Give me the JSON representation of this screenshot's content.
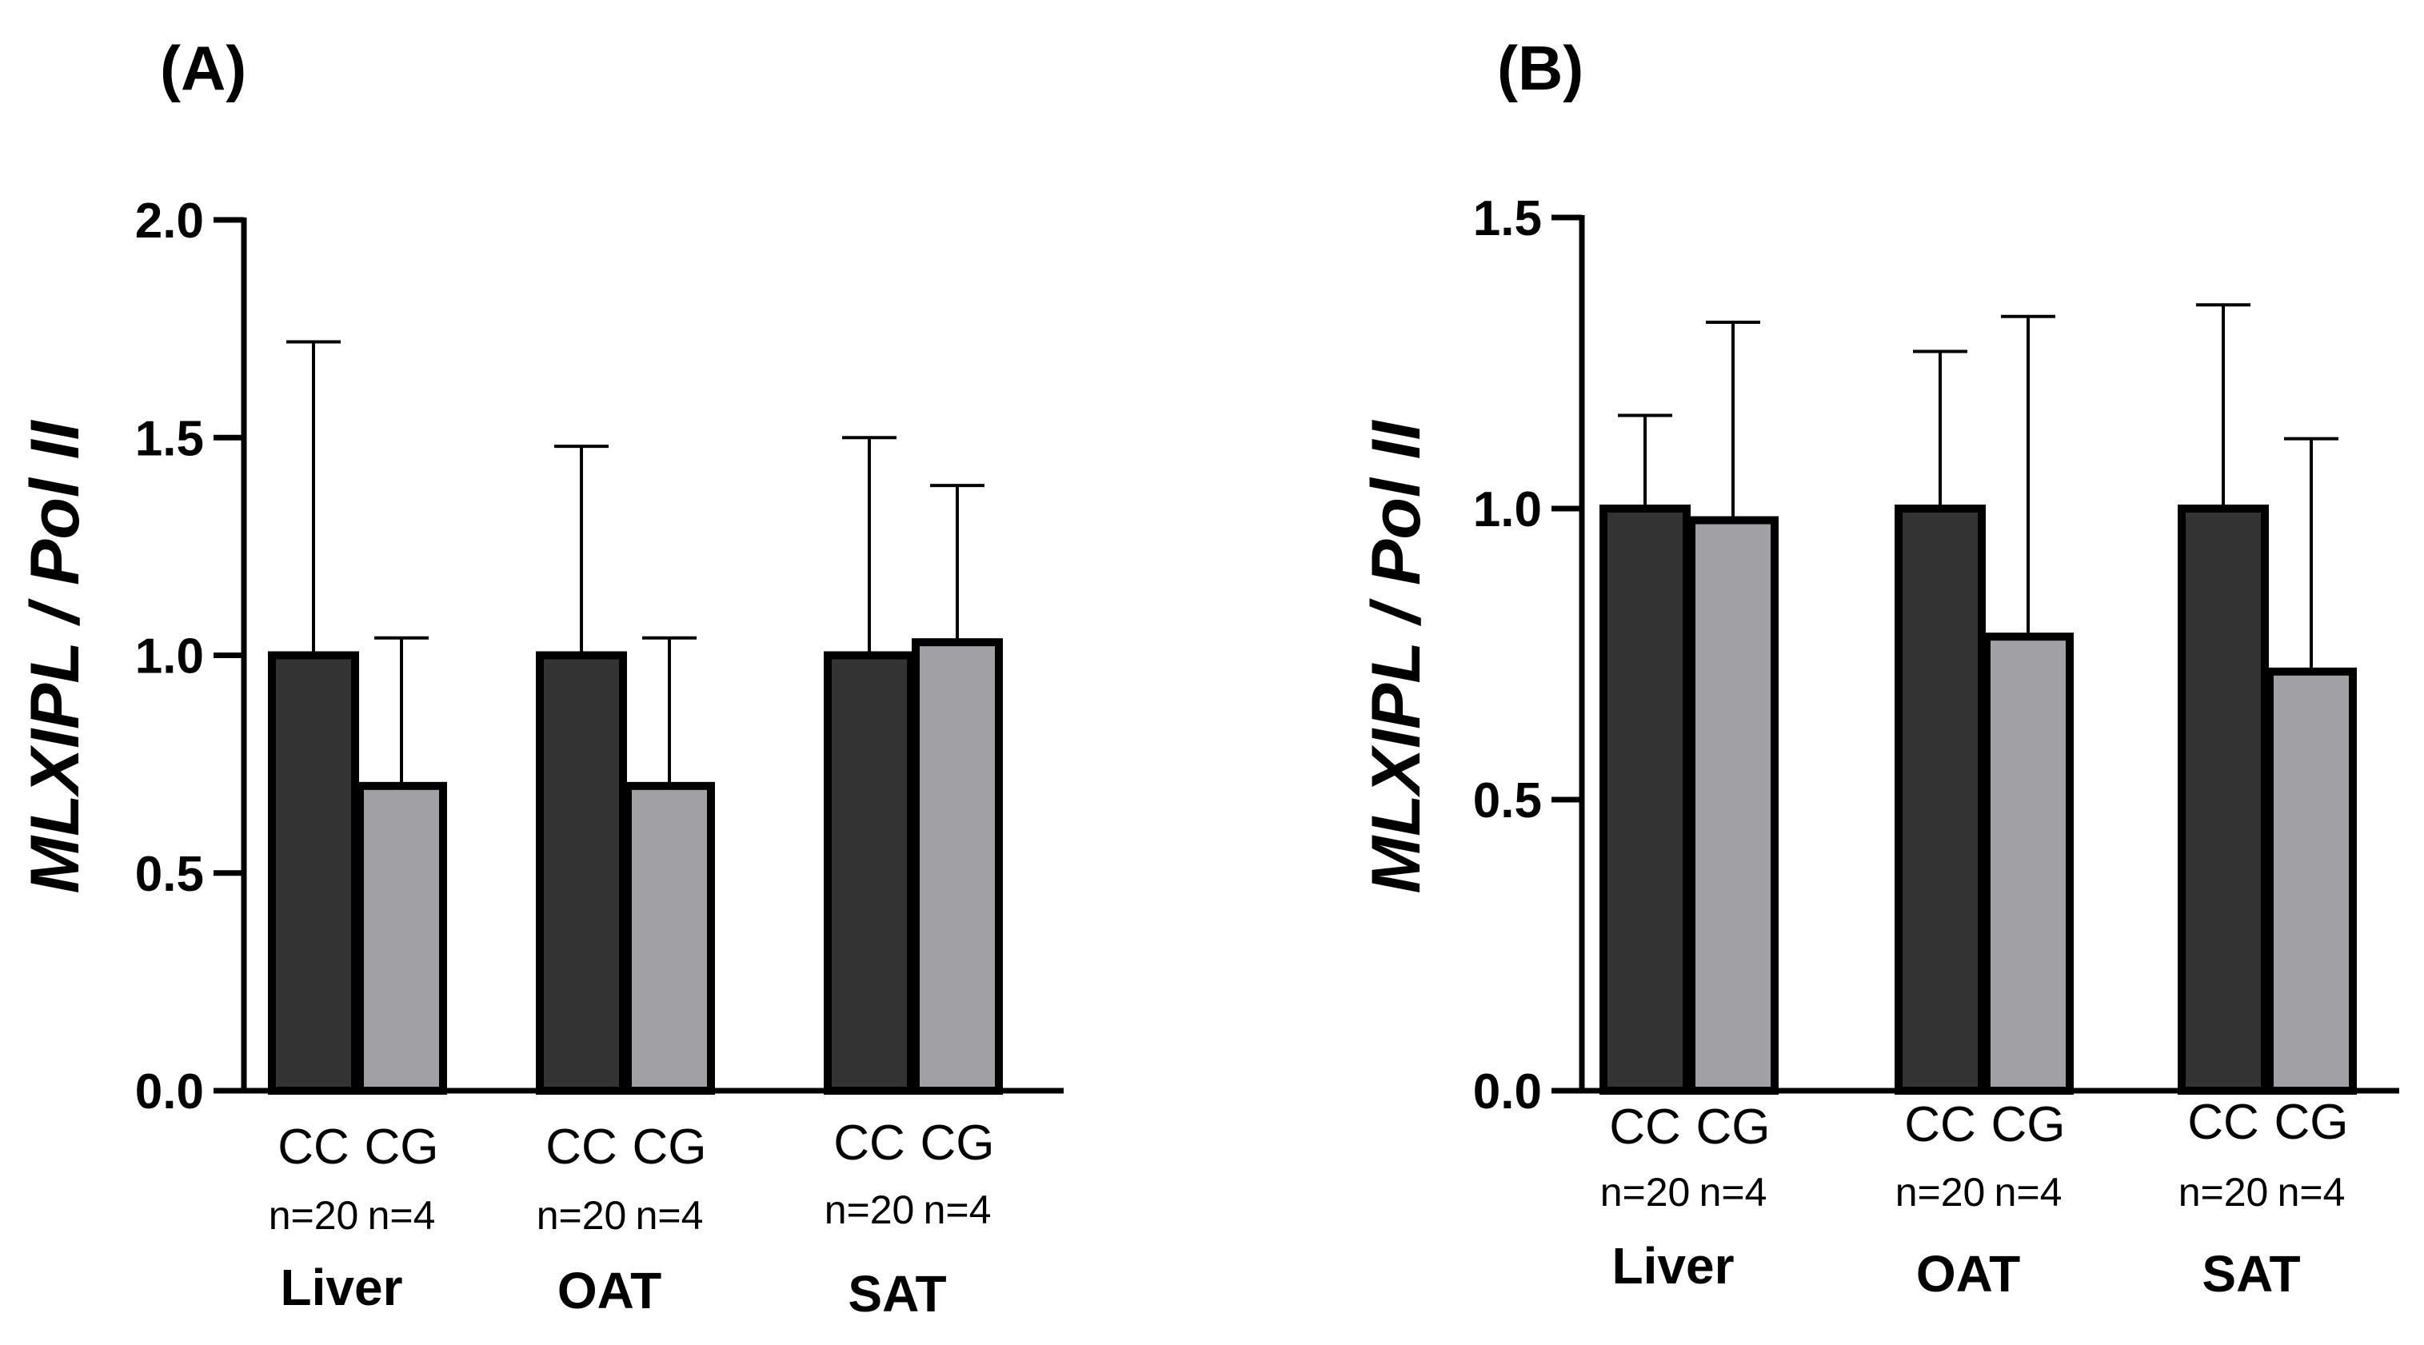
{
  "chart_data": [
    {
      "type": "bar",
      "panel_label": "(A)",
      "ylabel": "MLXIPL / Pol II",
      "ylim": [
        0,
        2.0
      ],
      "yticks": [
        "0.0",
        "0.5",
        "1.0",
        "1.5",
        "2.0"
      ],
      "groups": [
        {
          "tissue": "Liver",
          "bars": [
            {
              "label": "CC",
              "n": "n=20",
              "value": 1.0,
              "error": 0.72
            },
            {
              "label": "CG",
              "n": "n=4",
              "value": 0.7,
              "error": 0.34
            }
          ]
        },
        {
          "tissue": "OAT",
          "bars": [
            {
              "label": "CC",
              "n": "n=20",
              "value": 1.0,
              "error": 0.48
            },
            {
              "label": "CG",
              "n": "n=4",
              "value": 0.7,
              "error": 0.34
            }
          ]
        },
        {
          "tissue": "SAT",
          "bars": [
            {
              "label": "CC",
              "n": "n=20",
              "value": 1.0,
              "error": 0.5
            },
            {
              "label": "CG",
              "n": "n=4",
              "value": 1.03,
              "error": 0.36
            }
          ]
        }
      ]
    },
    {
      "type": "bar",
      "panel_label": "(B)",
      "ylabel": "MLXIPL / Pol II",
      "ylim": [
        0,
        1.5
      ],
      "yticks": [
        "0.0",
        "0.5",
        "1.0",
        "1.5"
      ],
      "groups": [
        {
          "tissue": "Liver",
          "bars": [
            {
              "label": "CC",
              "n": "n=20",
              "value": 1.0,
              "error": 0.16
            },
            {
              "label": "CG",
              "n": "n=4",
              "value": 0.98,
              "error": 0.34
            }
          ]
        },
        {
          "tissue": "OAT",
          "bars": [
            {
              "label": "CC",
              "n": "n=20",
              "value": 1.0,
              "error": 0.27
            },
            {
              "label": "CG",
              "n": "n=4",
              "value": 0.78,
              "error": 0.55
            }
          ]
        },
        {
          "tissue": "SAT",
          "bars": [
            {
              "label": "CC",
              "n": "n=20",
              "value": 1.0,
              "error": 0.35
            },
            {
              "label": "CG",
              "n": "n=4",
              "value": 0.72,
              "error": 0.4
            }
          ]
        }
      ]
    }
  ],
  "colors": {
    "CC": "#333333",
    "CG": "#a1a1a5",
    "outline": "#000000"
  }
}
